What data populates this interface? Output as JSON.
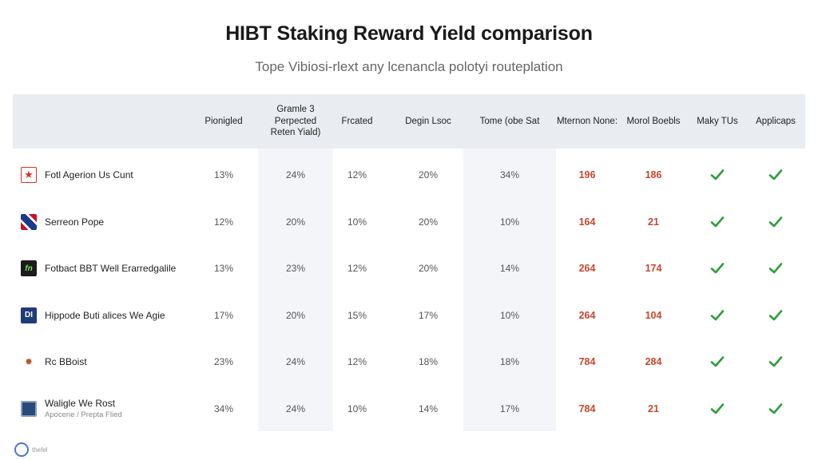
{
  "chart_data": {
    "type": "table",
    "title": "HIBT Staking Reward Yield comparison",
    "subtitle": "Tope Vibiosi-rlext any lcenancla polotyi routeplation",
    "columns": [
      "",
      "Pionigled",
      "Gramle 3 Perpected Reten Yiald)",
      "Frcated",
      "Degin Lsoc",
      "Tome (obe Sat",
      "Mternon None:",
      "Morol Boebls",
      "Maky TUs",
      "Applicaps"
    ],
    "rows": [
      {
        "name": "Fotl Agerion Us Cunt",
        "sub": "",
        "logo": "star",
        "values": [
          "13%",
          "24%",
          "12%",
          "20%",
          "34%",
          "196",
          "186"
        ],
        "checks": [
          true,
          true
        ]
      },
      {
        "name": "Serreon Pope",
        "sub": "",
        "logo": "flag",
        "values": [
          "12%",
          "20%",
          "10%",
          "20%",
          "10%",
          "164",
          "21"
        ],
        "checks": [
          true,
          true
        ]
      },
      {
        "name": "Fotbact BBT Well Erarredgalile",
        "sub": "",
        "logo": "fn",
        "logo_text": "fn",
        "values": [
          "13%",
          "23%",
          "12%",
          "20%",
          "14%",
          "264",
          "174"
        ],
        "checks": [
          true,
          true
        ]
      },
      {
        "name": "Hippode Buti alices We Agie",
        "sub": "",
        "logo": "di",
        "logo_text": "DI",
        "values": [
          "17%",
          "20%",
          "15%",
          "17%",
          "10%",
          "264",
          "104"
        ],
        "checks": [
          true,
          true
        ]
      },
      {
        "name": "Rc BBoist",
        "sub": "",
        "logo": "badge",
        "values": [
          "23%",
          "24%",
          "12%",
          "18%",
          "18%",
          "784",
          "284"
        ],
        "checks": [
          true,
          true
        ]
      },
      {
        "name": "Waligle We Rost",
        "sub": "Apocene / Prepta Flied",
        "logo": "tablet",
        "values": [
          "34%",
          "24%",
          "10%",
          "14%",
          "17%",
          "784",
          "21"
        ],
        "checks": [
          true,
          true
        ]
      }
    ]
  },
  "footer": {
    "text": "thefel"
  },
  "colors": {
    "accent_red": "#c9462c",
    "check_green": "#2e9e3a",
    "header_bg": "#e9ecf0",
    "shade": "#f3f5f8"
  }
}
